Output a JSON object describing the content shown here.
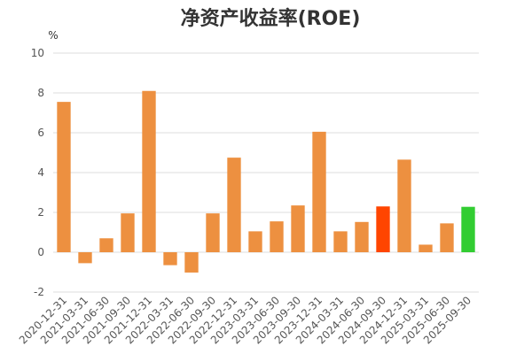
{
  "chart_data": {
    "type": "bar",
    "title": "净资产收益率(ROE)",
    "ylabel": "%",
    "xlabel": "",
    "ylim": [
      -2,
      10
    ],
    "yticks": [
      -2,
      0,
      2,
      4,
      6,
      8,
      10
    ],
    "grid": true,
    "categories": [
      "2020-12-31",
      "2021-03-31",
      "2021-06-30",
      "2021-09-30",
      "2021-12-31",
      "2022-03-31",
      "2022-06-30",
      "2022-09-30",
      "2022-12-31",
      "2023-03-31",
      "2023-06-30",
      "2023-09-30",
      "2023-12-31",
      "2024-03-31",
      "2024-06-30",
      "2024-09-30",
      "2024-12-31",
      "2025-03-31",
      "2025-06-30",
      "2025-09-30"
    ],
    "values": [
      7.55,
      -0.55,
      0.7,
      1.95,
      8.1,
      -0.65,
      -1.02,
      1.95,
      4.75,
      1.05,
      1.55,
      2.35,
      6.05,
      1.05,
      1.52,
      2.3,
      4.65,
      0.38,
      1.45,
      2.28
    ],
    "colors": {
      "default": "#ED9040",
      "highlight_2024_09_30": "#FF4500",
      "highlight_2025_09_30": "#32CD32"
    },
    "bar_colors": [
      "#ED9040",
      "#ED9040",
      "#ED9040",
      "#ED9040",
      "#ED9040",
      "#ED9040",
      "#ED9040",
      "#ED9040",
      "#ED9040",
      "#ED9040",
      "#ED9040",
      "#ED9040",
      "#ED9040",
      "#ED9040",
      "#ED9040",
      "#FF4500",
      "#ED9040",
      "#ED9040",
      "#ED9040",
      "#32CD32"
    ]
  }
}
